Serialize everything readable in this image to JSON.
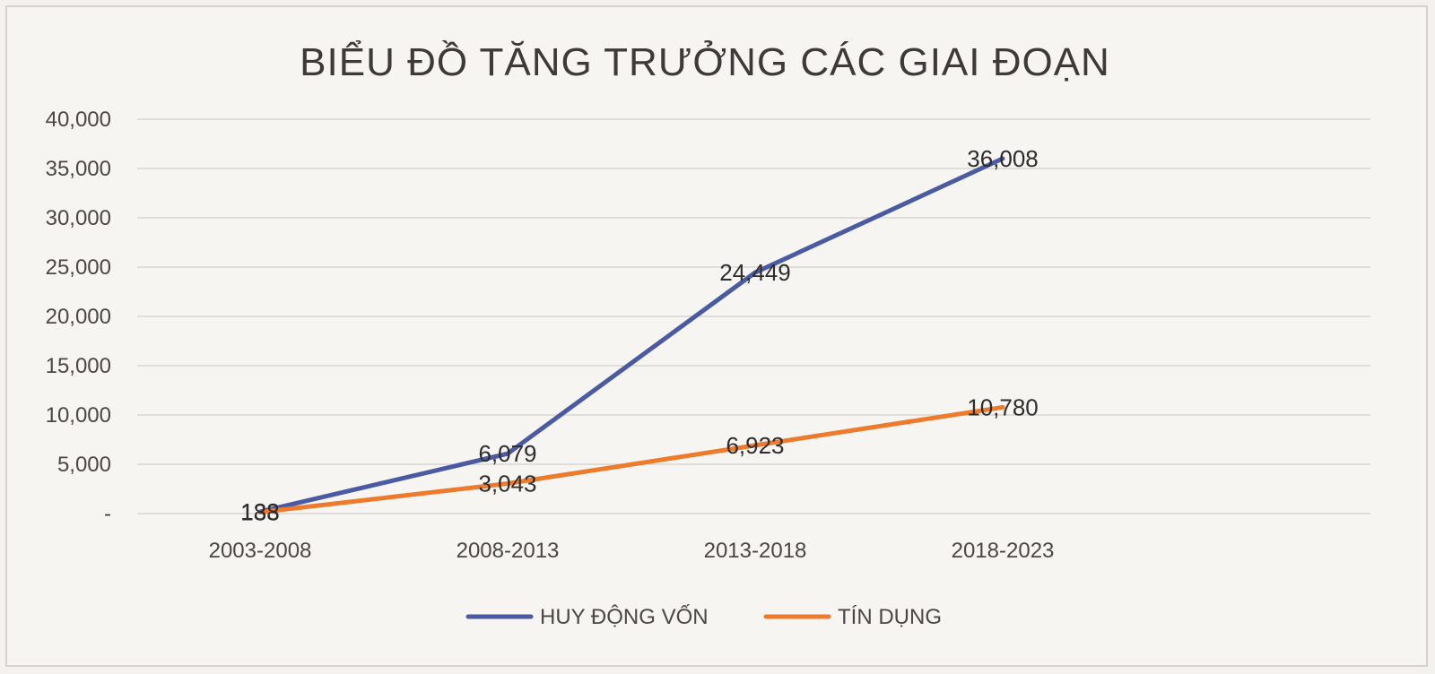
{
  "chart_data": {
    "type": "line",
    "title": "BIỂU ĐỒ TĂNG TRƯỞNG CÁC GIAI ĐOẠN",
    "categories": [
      "2003-2008",
      "2008-2013",
      "2013-2018",
      "2018-2023"
    ],
    "series": [
      {
        "name": "HUY ĐỘNG VỐN",
        "color": "#4a5aa3",
        "values": [
          188,
          6079,
          24449,
          36008
        ],
        "labels": [
          "188",
          "6,079",
          "24,449",
          "36,008"
        ]
      },
      {
        "name": "TÍN DỤNG",
        "color": "#ee7a2c",
        "values": [
          133,
          3043,
          6923,
          10780
        ],
        "labels": [
          "133",
          "3,043",
          "6,923",
          "10,780"
        ]
      }
    ],
    "ylim": [
      0,
      40000
    ],
    "y_ticks": [
      0,
      5000,
      10000,
      15000,
      20000,
      25000,
      30000,
      35000,
      40000
    ],
    "y_tick_labels": [
      "-",
      "5,000",
      "10,000",
      "15,000",
      "20,000",
      "25,000",
      "30,000",
      "35,000",
      "40,000"
    ],
    "grid": true,
    "legend_position": "bottom"
  }
}
